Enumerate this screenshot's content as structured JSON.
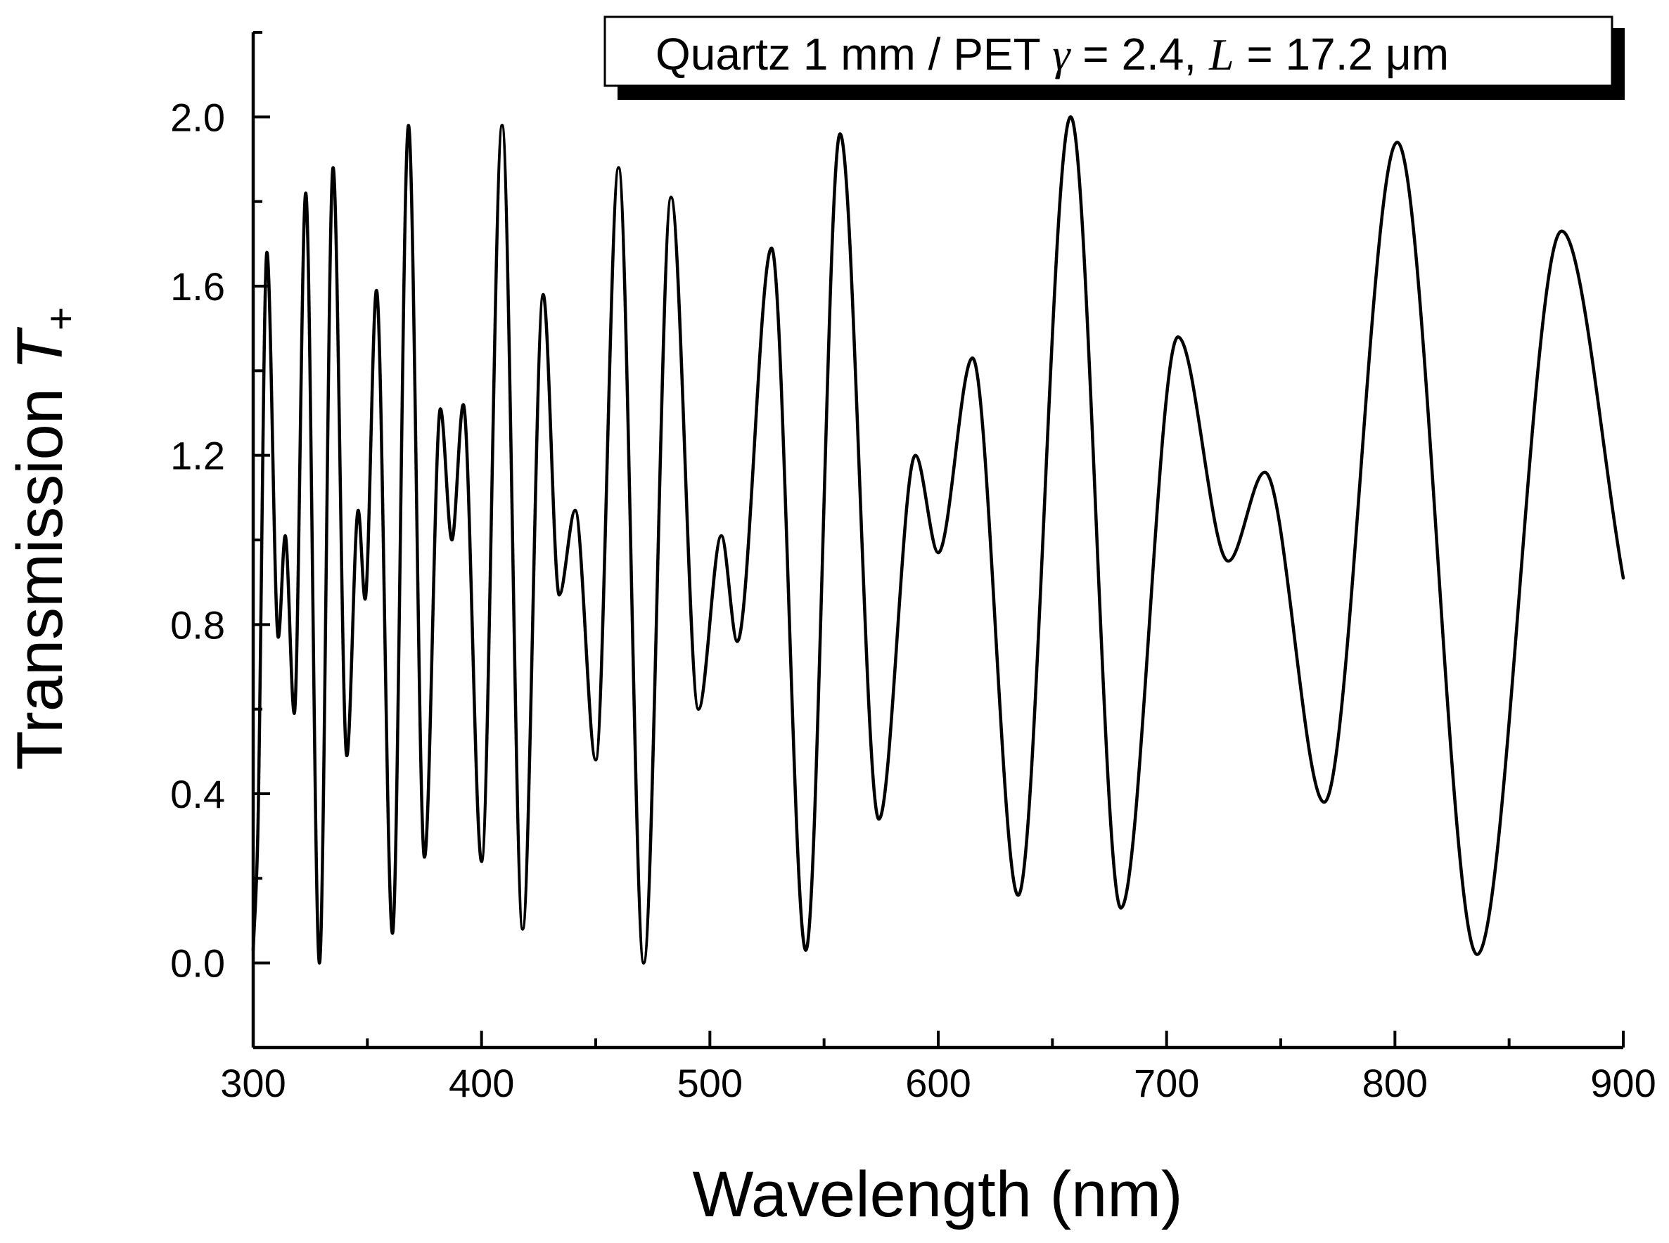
{
  "chart_data": {
    "type": "line",
    "title": "",
    "xlabel": "Wavelength (nm)",
    "ylabel": "Transmission T+",
    "ylabel_text": "Transmission ",
    "ylabel_symbol": "T",
    "ylabel_subscript": "+",
    "xlim": [
      300,
      900
    ],
    "ylim": [
      -0.2,
      2.2
    ],
    "x_ticks": [
      300,
      400,
      500,
      600,
      700,
      800,
      900
    ],
    "x_tick_labels": [
      "300",
      "400",
      "500",
      "600",
      "700",
      "800",
      "900"
    ],
    "y_ticks": [
      0.0,
      0.4,
      0.8,
      1.2,
      1.6,
      2.0
    ],
    "y_tick_labels": [
      "0.0",
      "0.4",
      "0.8",
      "1.2",
      "1.6",
      "2.0"
    ],
    "grid": false,
    "legend": {
      "position": "top-right",
      "prefix": "Quartz 1 mm / PET ",
      "gamma_symbol": "γ",
      "gamma_value": " = 2.4, ",
      "l_symbol": "L",
      "l_value": " = 17.2 μm"
    },
    "series": [
      {
        "name": "Quartz 1 mm / PET γ = 2.4, L = 17.2 μm",
        "color": "#000000",
        "x": [
          300,
          302,
          306,
          311,
          314,
          318,
          323,
          329,
          335,
          341,
          346,
          349,
          354,
          361,
          368,
          375,
          382,
          387,
          392,
          400,
          409,
          418,
          427,
          434,
          441,
          450,
          460,
          471,
          483,
          495,
          505,
          512,
          527,
          542,
          557,
          574,
          590,
          600,
          615,
          635,
          658,
          680,
          705,
          727,
          743,
          769,
          801,
          836,
          873,
          900
        ],
        "y": [
          0.03,
          0.3,
          1.68,
          0.77,
          1.01,
          0.59,
          1.82,
          0.0,
          1.88,
          0.49,
          1.07,
          0.86,
          1.59,
          0.07,
          1.98,
          0.25,
          1.31,
          1.0,
          1.32,
          0.24,
          1.98,
          0.08,
          1.58,
          0.87,
          1.07,
          0.48,
          1.88,
          0.0,
          1.81,
          0.6,
          1.01,
          0.76,
          1.69,
          0.03,
          1.96,
          0.34,
          1.2,
          0.97,
          1.43,
          0.16,
          2.0,
          0.13,
          1.48,
          0.95,
          1.16,
          0.38,
          1.94,
          0.02,
          1.73,
          0.91
        ]
      }
    ]
  }
}
